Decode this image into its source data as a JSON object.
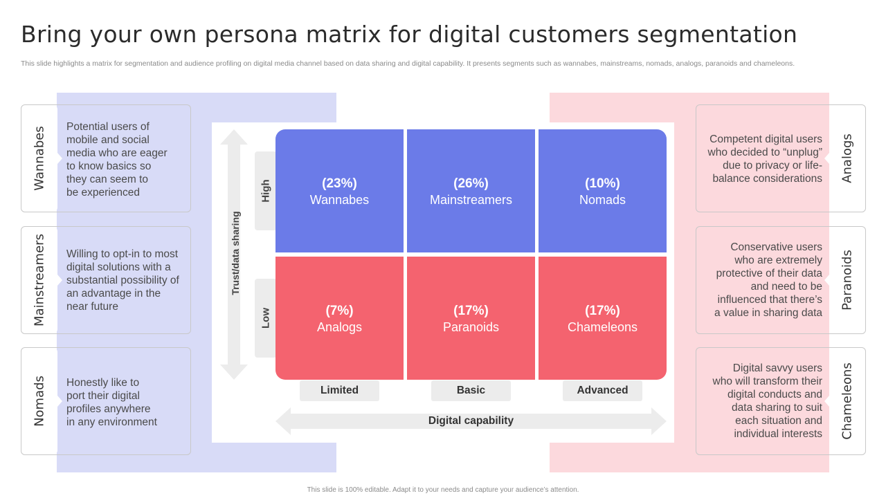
{
  "title": "Bring your own persona matrix for digital customers segmentation",
  "subtitle": "This slide highlights a matrix for segmentation and audience profiling on digital media channel based on data sharing and digital capability. It presents segments such as wannabes, mainstreams, nomads, analogs, paranoids and chameleons.",
  "left_cards": [
    {
      "label": "Wannabes",
      "text": "Potential users of\nmobile and social\nmedia who are eager\nto know basics so\nthey can seem to\nbe experienced"
    },
    {
      "label": "Mainstreamers",
      "text": "Willing to opt-in to most\ndigital solutions with a\nsubstantial possibility of\nan advantage in the\nnear future"
    },
    {
      "label": "Nomads",
      "text": "Honestly like to\nport their digital\nprofiles anywhere\nin any environment"
    }
  ],
  "right_cards": [
    {
      "label": "Analogs",
      "text": "Competent digital users\nwho decided to “unplug”\ndue to privacy or life-\nbalance considerations"
    },
    {
      "label": "Paranoids",
      "text": "Conservative users\nwho are extremely\nprotective of their data\nand need to be\ninfluenced that there’s\na value in sharing data"
    },
    {
      "label": "Chameleons",
      "text": "Digital savvy users\nwho will transform their\ndigital conducts and\ndata sharing to suit\neach situation and\nindividual interests"
    }
  ],
  "matrix": {
    "y_axis_label": "Trust/data sharing",
    "y_levels": [
      "High",
      "Low"
    ],
    "x_axis_label": "Digital capability",
    "x_levels": [
      "Limited",
      "Basic",
      "Advanced"
    ],
    "rows": [
      [
        {
          "pct": "(23%)",
          "name": "Wannabes"
        },
        {
          "pct": "(26%)",
          "name": "Mainstreamers"
        },
        {
          "pct": "(10%)",
          "name": "Nomads"
        }
      ],
      [
        {
          "pct": "(7%)",
          "name": "Analogs"
        },
        {
          "pct": "(17%)",
          "name": "Paranoids"
        },
        {
          "pct": "(17%)",
          "name": "Chameleons"
        }
      ]
    ]
  },
  "colors": {
    "high_cells": "#6b7be8",
    "low_cells": "#f4636f",
    "left_band": "#d8dbf7",
    "right_band": "#fcd9dd"
  },
  "footer": "This slide is 100% editable. Adapt it to your needs and capture your audience’s attention."
}
